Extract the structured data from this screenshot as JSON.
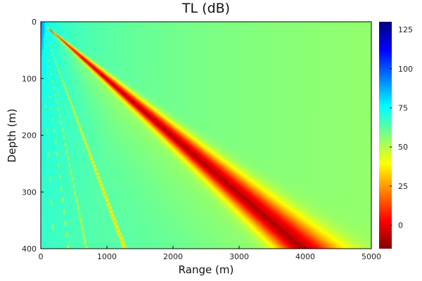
{
  "chart_data": {
    "type": "heatmap",
    "title": "TL (dB)",
    "xlabel": "Range (m)",
    "ylabel": "Depth (m)",
    "xlim": [
      0,
      5000
    ],
    "ylim": [
      0,
      400
    ],
    "y_inverted": true,
    "x_ticks": [
      "0",
      "1000",
      "2000",
      "3000",
      "4000",
      "5000"
    ],
    "y_ticks": [
      "0",
      "100",
      "200",
      "300",
      "400"
    ],
    "colorbar": {
      "colormap": "jet",
      "range": [
        -15,
        130
      ],
      "ticks": [
        "0",
        "25",
        "50",
        "75",
        "100",
        "125"
      ]
    },
    "features": {
      "main_null_end": [
        4000,
        400
      ],
      "secondary_null_ends_at_400m": [
        1270,
        690,
        420,
        200
      ],
      "field_values_db": {
        "near_source": 35,
        "lower_left": 47,
        "upper_right": 67,
        "below_main_null": 78
      }
    }
  }
}
